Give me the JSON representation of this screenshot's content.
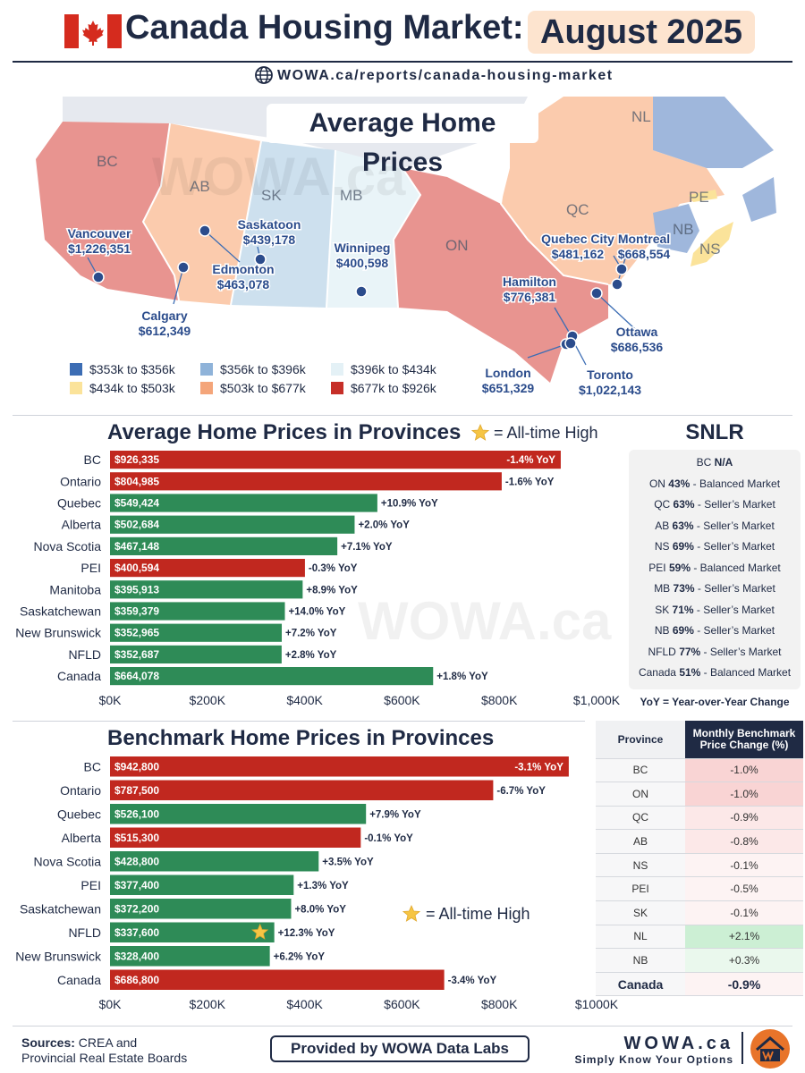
{
  "header": {
    "title": "Canada Housing Market:",
    "date": "August 2025",
    "url": "WOWA.ca/reports/canada-housing-market"
  },
  "map": {
    "title": "Average Home Prices",
    "watermark": "WOWA.ca",
    "provinces": [
      "BC",
      "AB",
      "SK",
      "MB",
      "ON",
      "QC",
      "NL",
      "PE",
      "NB",
      "NS"
    ],
    "cities": [
      {
        "name": "Vancouver",
        "price": "$1,226,351"
      },
      {
        "name": "Calgary",
        "price": "$612,349"
      },
      {
        "name": "Edmonton",
        "price": "$463,078"
      },
      {
        "name": "Saskatoon",
        "price": "$439,178"
      },
      {
        "name": "Winnipeg",
        "price": "$400,598"
      },
      {
        "name": "Hamilton",
        "price": "$776,381"
      },
      {
        "name": "London",
        "price": "$651,329"
      },
      {
        "name": "Toronto",
        "price": "$1,022,143"
      },
      {
        "name": "Ottawa",
        "price": "$686,536"
      },
      {
        "name": "Quebec City",
        "price": "$481,162"
      },
      {
        "name": "Montreal",
        "price": "$668,554"
      }
    ],
    "legend": [
      {
        "label": "$353k to $356k",
        "color": "#3c6db4"
      },
      {
        "label": "$356k to $396k",
        "color": "#8fb3d9"
      },
      {
        "label": "$396k to $434k",
        "color": "#e4f1f6"
      },
      {
        "label": "$434k to $503k",
        "color": "#fbe39a"
      },
      {
        "label": "$503k to $677k",
        "color": "#f4a57a"
      },
      {
        "label": "$677k to $926k",
        "color": "#c62f28"
      }
    ]
  },
  "avg_chart": {
    "ath_label": "= All-time High",
    "watermark": "WOWA.ca"
  },
  "snlr": {
    "title": "SNLR",
    "rows": [
      {
        "prov": "BC",
        "pct": "N/A",
        "status": ""
      },
      {
        "prov": "ON",
        "pct": "43%",
        "status": "- Balanced Market"
      },
      {
        "prov": "QC",
        "pct": "63%",
        "status": "- Seller’s Market"
      },
      {
        "prov": "AB",
        "pct": "63%",
        "status": "- Seller’s Market"
      },
      {
        "prov": "NS",
        "pct": "69%",
        "status": "- Seller’s Market"
      },
      {
        "prov": "PEI",
        "pct": "59%",
        "status": "- Balanced Market"
      },
      {
        "prov": "MB",
        "pct": "73%",
        "status": "- Seller’s Market"
      },
      {
        "prov": "SK",
        "pct": "71%",
        "status": "- Seller’s Market"
      },
      {
        "prov": "NB",
        "pct": "69%",
        "status": "- Seller’s Market"
      },
      {
        "prov": "NFLD",
        "pct": "77%",
        "status": "- Seller’s Market"
      },
      {
        "prov": "Canada",
        "pct": "51%",
        "status": "- Balanced Market"
      }
    ],
    "note": "YoY = Year-over-Year Change"
  },
  "bench_chart": {
    "ath_label": "= All-time High"
  },
  "monthly_table": {
    "header_province": "Province",
    "header_change": "Monthly Benchmark Price Change (%)",
    "rows": [
      {
        "prov": "BC",
        "chg": "-1.0%",
        "color": "#f9d4d4"
      },
      {
        "prov": "ON",
        "chg": "-1.0%",
        "color": "#f9d4d4"
      },
      {
        "prov": "QC",
        "chg": "-0.9%",
        "color": "#fce8e8"
      },
      {
        "prov": "AB",
        "chg": "-0.8%",
        "color": "#fce8e8"
      },
      {
        "prov": "NS",
        "chg": "-0.1%",
        "color": "#fdf3f3"
      },
      {
        "prov": "PEI",
        "chg": "-0.5%",
        "color": "#fdf3f3"
      },
      {
        "prov": "SK",
        "chg": "-0.1%",
        "color": "#fdf3f3"
      },
      {
        "prov": "NL",
        "chg": "+2.1%",
        "color": "#ccefd4"
      },
      {
        "prov": "NB",
        "chg": "+0.3%",
        "color": "#eaf8ed"
      }
    ],
    "total": {
      "prov": "Canada",
      "chg": "-0.9%"
    }
  },
  "footer": {
    "sources_bold": "Sources:",
    "sources_rest": " CREA and",
    "sources_line2": "Provincial Real Estate Boards",
    "provided": "Provided by WOWA Data Labs",
    "brand": "WOWA.ca",
    "tagline": "Simply Know Your Options"
  },
  "chart_data": [
    {
      "type": "bar",
      "orientation": "horizontal",
      "title": "Average Home Prices in Provinces",
      "categories": [
        "BC",
        "Ontario",
        "Quebec",
        "Alberta",
        "Nova Scotia",
        "PEI",
        "Manitoba",
        "Saskatchewan",
        "New Brunswick",
        "NFLD",
        "Canada"
      ],
      "values": [
        926335,
        804985,
        549424,
        502684,
        467148,
        400594,
        395913,
        359379,
        352965,
        352687,
        664078
      ],
      "value_labels": [
        "$926,335",
        "$804,985",
        "$549,424",
        "$502,684",
        "$467,148",
        "$400,594",
        "$395,913",
        "$359,379",
        "$352,965",
        "$352,687",
        "$664,078"
      ],
      "yoy": [
        "-1.4% YoY",
        "-1.6% YoY",
        "+10.9% YoY",
        "+2.0% YoY",
        "+7.1% YoY",
        "-0.3% YoY",
        "+8.9% YoY",
        "+14.0% YoY",
        "+7.2% YoY",
        "+2.8% YoY",
        "+1.8% YoY"
      ],
      "all_time_high": [],
      "xlim": [
        0,
        1000000
      ],
      "ticks": [
        "$0K",
        "$200K",
        "$400K",
        "$600K",
        "$800K",
        "$1,000K"
      ],
      "colors": {
        "positive": "#2e8b57",
        "negative": "#c1281f"
      }
    },
    {
      "type": "bar",
      "orientation": "horizontal",
      "title": "Benchmark Home Prices in Provinces",
      "categories": [
        "BC",
        "Ontario",
        "Quebec",
        "Alberta",
        "Nova Scotia",
        "PEI",
        "Saskatchewan",
        "NFLD",
        "New Brunswick",
        "Canada"
      ],
      "values": [
        942800,
        787500,
        526100,
        515300,
        428800,
        377400,
        372200,
        337600,
        328400,
        686800
      ],
      "value_labels": [
        "$942,800",
        "$787,500",
        "$526,100",
        "$515,300",
        "$428,800",
        "$377,400",
        "$372,200",
        "$337,600",
        "$328,400",
        "$686,800"
      ],
      "yoy": [
        "-3.1% YoY",
        "-6.7% YoY",
        "+7.9% YoY",
        "-0.1% YoY",
        "+3.5% YoY",
        "+1.3% YoY",
        "+8.0% YoY",
        "+12.3% YoY",
        "+6.2% YoY",
        "-3.4% YoY"
      ],
      "all_time_high": [
        "NFLD"
      ],
      "xlim": [
        0,
        1000000
      ],
      "ticks": [
        "$0K",
        "$200K",
        "$400K",
        "$600K",
        "$800K",
        "$1000K"
      ],
      "colors": {
        "positive": "#2e8b57",
        "negative": "#c1281f"
      }
    }
  ]
}
